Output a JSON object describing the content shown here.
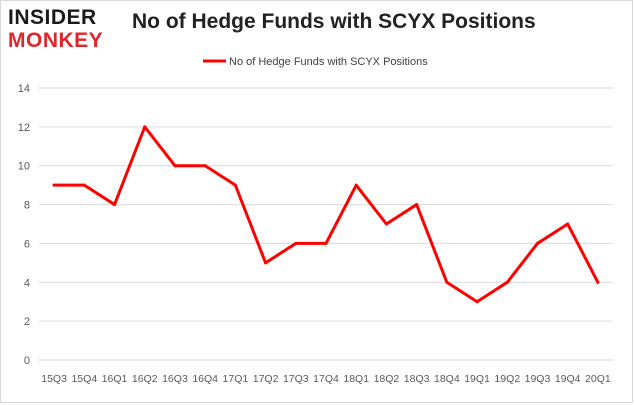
{
  "logo": {
    "line1": "INSIDER",
    "line2": "MONKEY"
  },
  "colors": {
    "line": "#ff0000",
    "grid": "#d9d9d9",
    "axis_text": "#595959",
    "logo_red": "#e0252b"
  },
  "chart_data": {
    "type": "line",
    "title": "No of Hedge Funds with SCYX Positions",
    "xlabel": "",
    "ylabel": "",
    "ylim": [
      0,
      14
    ],
    "yticks": [
      0,
      2,
      4,
      6,
      8,
      10,
      12,
      14
    ],
    "grid": true,
    "legend_position": "top",
    "categories": [
      "15Q3",
      "15Q4",
      "16Q1",
      "16Q2",
      "16Q3",
      "16Q4",
      "17Q1",
      "17Q2",
      "17Q3",
      "17Q4",
      "18Q1",
      "18Q2",
      "18Q3",
      "18Q4",
      "19Q1",
      "19Q2",
      "19Q3",
      "19Q4",
      "20Q1"
    ],
    "series": [
      {
        "name": "No of Hedge Funds with SCYX Positions",
        "values": [
          9,
          9,
          8,
          12,
          10,
          10,
          9,
          5,
          6,
          6,
          9,
          7,
          8,
          4,
          3,
          4,
          6,
          7,
          4
        ]
      }
    ]
  }
}
